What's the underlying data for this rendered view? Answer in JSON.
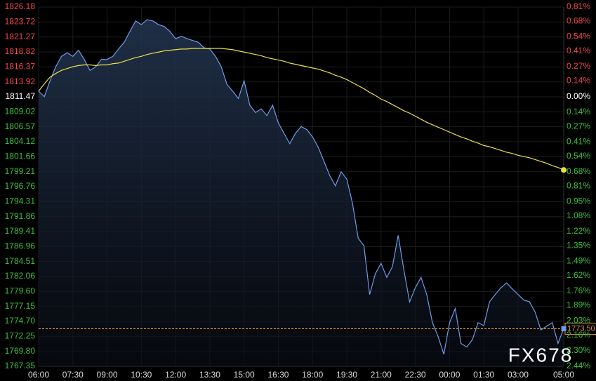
{
  "chart_data": {
    "type": "line",
    "x": [
      "06:00",
      "06:15",
      "06:30",
      "06:45",
      "07:00",
      "07:15",
      "07:30",
      "07:45",
      "08:00",
      "08:15",
      "08:30",
      "08:45",
      "09:00",
      "09:15",
      "09:30",
      "09:45",
      "10:00",
      "10:15",
      "10:30",
      "10:45",
      "11:00",
      "11:15",
      "11:30",
      "11:45",
      "12:00",
      "12:15",
      "12:30",
      "12:45",
      "13:00",
      "13:15",
      "13:30",
      "13:45",
      "14:00",
      "14:15",
      "14:30",
      "14:45",
      "15:00",
      "15:15",
      "15:30",
      "15:45",
      "16:00",
      "16:15",
      "16:30",
      "16:45",
      "17:00",
      "17:15",
      "17:30",
      "17:45",
      "18:00",
      "18:15",
      "18:30",
      "18:45",
      "19:00",
      "19:15",
      "19:30",
      "19:45",
      "20:00",
      "20:15",
      "20:30",
      "20:45",
      "21:00",
      "21:15",
      "21:30",
      "21:45",
      "22:00",
      "22:15",
      "22:30",
      "22:45",
      "23:00",
      "23:15",
      "23:30",
      "23:45",
      "00:00",
      "00:15",
      "00:30",
      "00:45",
      "01:00",
      "01:15",
      "01:30",
      "01:45",
      "02:00",
      "02:15",
      "02:30",
      "02:45",
      "03:00",
      "03:15",
      "03:30",
      "03:45",
      "04:00",
      "04:15",
      "04:30",
      "04:45",
      "05:00"
    ],
    "series": [
      {
        "color": "#6f9be8",
        "values": [
          1812.4,
          1811.5,
          1814.1,
          1816.4,
          1818.1,
          1818.7,
          1818.1,
          1819.1,
          1817.6,
          1815.8,
          1816.4,
          1817.6,
          1817.6,
          1818.1,
          1819.3,
          1820.4,
          1822.2,
          1823.9,
          1823.3,
          1824.1,
          1823.9,
          1823.3,
          1823.0,
          1822.2,
          1821.0,
          1821.4,
          1821.0,
          1820.7,
          1820.4,
          1819.5,
          1819.3,
          1818.1,
          1816.4,
          1813.5,
          1812.4,
          1811.2,
          1814.1,
          1810.1,
          1808.9,
          1809.5,
          1808.4,
          1810.1,
          1807.2,
          1805.5,
          1803.8,
          1805.5,
          1806.6,
          1806.1,
          1804.9,
          1803.2,
          1800.9,
          1798.6,
          1796.9,
          1799.2,
          1798.0,
          1794.0,
          1788.3,
          1787.1,
          1779.1,
          1782.5,
          1784.2,
          1781.9,
          1783.7,
          1788.8,
          1783.1,
          1777.9,
          1780.2,
          1781.9,
          1779.1,
          1774.5,
          1772.2,
          1769.3,
          1774.5,
          1776.8,
          1771.1,
          1770.5,
          1771.7,
          1774.5,
          1774.0,
          1777.9,
          1779.1,
          1780.2,
          1781.0,
          1780.0,
          1779.1,
          1778.2,
          1777.9,
          1776.2,
          1773.3,
          1773.9,
          1774.5,
          1771.1,
          1773.5
        ]
      },
      {
        "color": "#e8e04a",
        "values": [
          1812.4,
          1813.6,
          1814.7,
          1815.3,
          1815.8,
          1816.1,
          1816.4,
          1816.6,
          1816.7,
          1816.7,
          1816.6,
          1816.7,
          1816.7,
          1816.9,
          1817.0,
          1817.3,
          1817.6,
          1817.9,
          1818.1,
          1818.4,
          1818.6,
          1818.8,
          1819.0,
          1819.1,
          1819.2,
          1819.3,
          1819.3,
          1819.4,
          1819.4,
          1819.4,
          1819.4,
          1819.4,
          1819.4,
          1819.3,
          1819.2,
          1819.0,
          1818.8,
          1818.6,
          1818.4,
          1818.2,
          1817.9,
          1817.7,
          1817.5,
          1817.3,
          1817.0,
          1816.8,
          1816.6,
          1816.4,
          1816.2,
          1816.0,
          1815.7,
          1815.4,
          1815.0,
          1814.7,
          1814.3,
          1813.8,
          1813.3,
          1812.8,
          1812.2,
          1811.7,
          1811.1,
          1810.7,
          1810.2,
          1809.7,
          1809.2,
          1808.8,
          1808.3,
          1807.8,
          1807.3,
          1806.9,
          1806.5,
          1806.1,
          1805.7,
          1805.3,
          1804.9,
          1804.6,
          1804.2,
          1803.9,
          1803.5,
          1803.3,
          1803.0,
          1802.7,
          1802.4,
          1802.2,
          1801.9,
          1801.7,
          1801.5,
          1801.2,
          1800.9,
          1800.6,
          1800.2,
          1799.9,
          1799.5
        ]
      }
    ],
    "xticks": [
      "06:00",
      "07:30",
      "09:00",
      "10:30",
      "12:00",
      "13:30",
      "15:00",
      "16:30",
      "18:00",
      "19:30",
      "21:00",
      "22:30",
      "00:00",
      "01:30",
      "03:00",
      "05:00"
    ],
    "ylim": [
      1767.35,
      1826.18
    ],
    "yticks": [
      1826.18,
      1823.72,
      1821.27,
      1818.82,
      1816.37,
      1813.92,
      1811.47,
      1809.02,
      1806.57,
      1804.12,
      1801.66,
      1799.21,
      1796.76,
      1794.31,
      1791.86,
      1789.41,
      1786.96,
      1784.51,
      1782.06,
      {
        "value": 1779.6,
        "label": "1779.60"
      },
      1777.15,
      {
        "value": 1774.7,
        "label": "1774.70"
      },
      1772.25,
      {
        "value": 1769.8,
        "label": "1769.80"
      },
      1767.35
    ],
    "y2lim": [
      -2.44,
      0.81
    ],
    "y2ticks": [
      {
        "value": 0.81,
        "label": "0.81%"
      },
      {
        "value": 0.68,
        "label": "0.68%"
      },
      {
        "value": 0.54,
        "label": "0.54%"
      },
      {
        "value": 0.41,
        "label": "0.41%"
      },
      {
        "value": 0.27,
        "label": "0.27%"
      },
      {
        "value": 0.14,
        "label": "0.14%"
      },
      {
        "value": 0,
        "label": "0.00%"
      },
      {
        "value": -0.14,
        "label": "0.14%"
      },
      {
        "value": -0.27,
        "label": "0.27%"
      },
      {
        "value": -0.41,
        "label": "0.41%"
      },
      {
        "value": -0.54,
        "label": "0.54%"
      },
      {
        "value": -0.68,
        "label": "0.68%"
      },
      {
        "value": -0.81,
        "label": "0.81%"
      },
      {
        "value": -0.95,
        "label": "0.95%"
      },
      {
        "value": -1.08,
        "label": "1.08%"
      },
      {
        "value": -1.22,
        "label": "1.22%"
      },
      {
        "value": -1.35,
        "label": "1.35%"
      },
      {
        "value": -1.49,
        "label": "1.49%"
      },
      {
        "value": -1.62,
        "label": "1.62%"
      },
      {
        "value": -1.76,
        "label": "1.76%"
      },
      {
        "value": -1.89,
        "label": "1.89%"
      },
      {
        "value": -2.03,
        "label": "2.03%"
      },
      {
        "value": -2.16,
        "label": "2.16%"
      },
      {
        "value": -2.3,
        "label": "2.30%"
      },
      {
        "value": -2.44,
        "label": "2.44%"
      }
    ],
    "price_line": {
      "value": 1773.5,
      "label": "1773.50",
      "color": "#e8963c"
    },
    "up_color": "#f04848",
    "down_color": "#3cc23c",
    "grid": true,
    "watermark": "FX678"
  }
}
